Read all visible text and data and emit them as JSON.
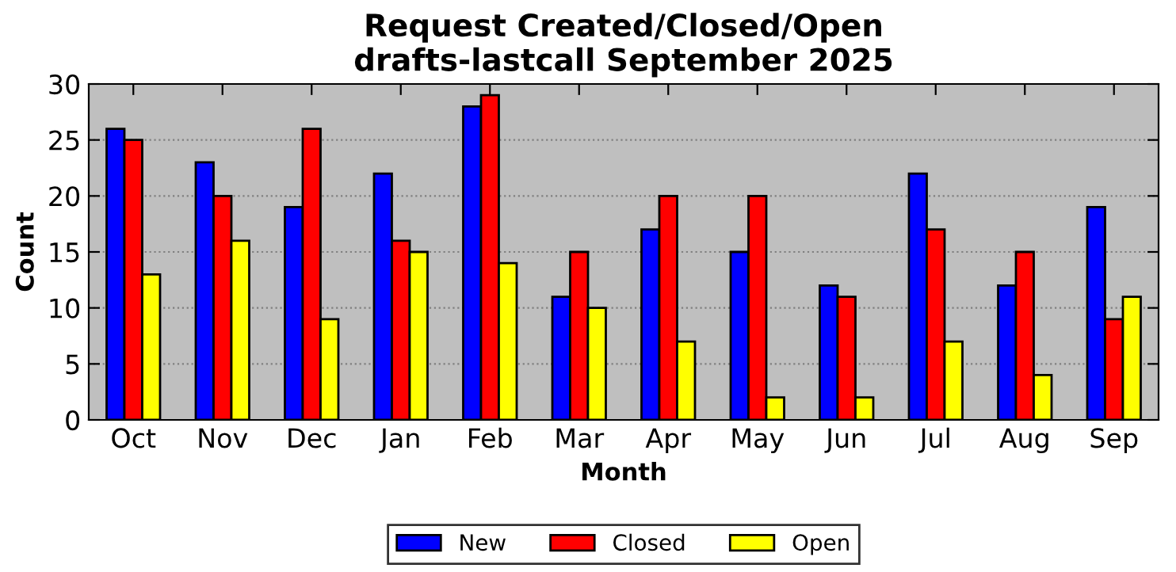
{
  "chart_data": {
    "type": "bar",
    "title": "Request Created/Closed/Open\ndrafts-lastcall September 2025",
    "xlabel": "Month",
    "ylabel": "Count",
    "categories": [
      "Oct",
      "Nov",
      "Dec",
      "Jan",
      "Feb",
      "Mar",
      "Apr",
      "May",
      "Jun",
      "Jul",
      "Aug",
      "Sep"
    ],
    "series": [
      {
        "name": "New",
        "color": "#0000ff",
        "values": [
          26,
          23,
          19,
          22,
          28,
          11,
          17,
          15,
          12,
          22,
          12,
          19
        ]
      },
      {
        "name": "Closed",
        "color": "#ff0000",
        "values": [
          25,
          20,
          26,
          16,
          29,
          15,
          20,
          20,
          11,
          17,
          15,
          9
        ]
      },
      {
        "name": "Open",
        "color": "#ffff00",
        "values": [
          13,
          16,
          9,
          15,
          14,
          10,
          7,
          2,
          2,
          7,
          4,
          11
        ]
      }
    ],
    "ylim": [
      0,
      30
    ],
    "yticks": [
      0,
      5,
      10,
      15,
      20,
      25,
      30
    ],
    "grid": "y",
    "legend": "bottom"
  }
}
